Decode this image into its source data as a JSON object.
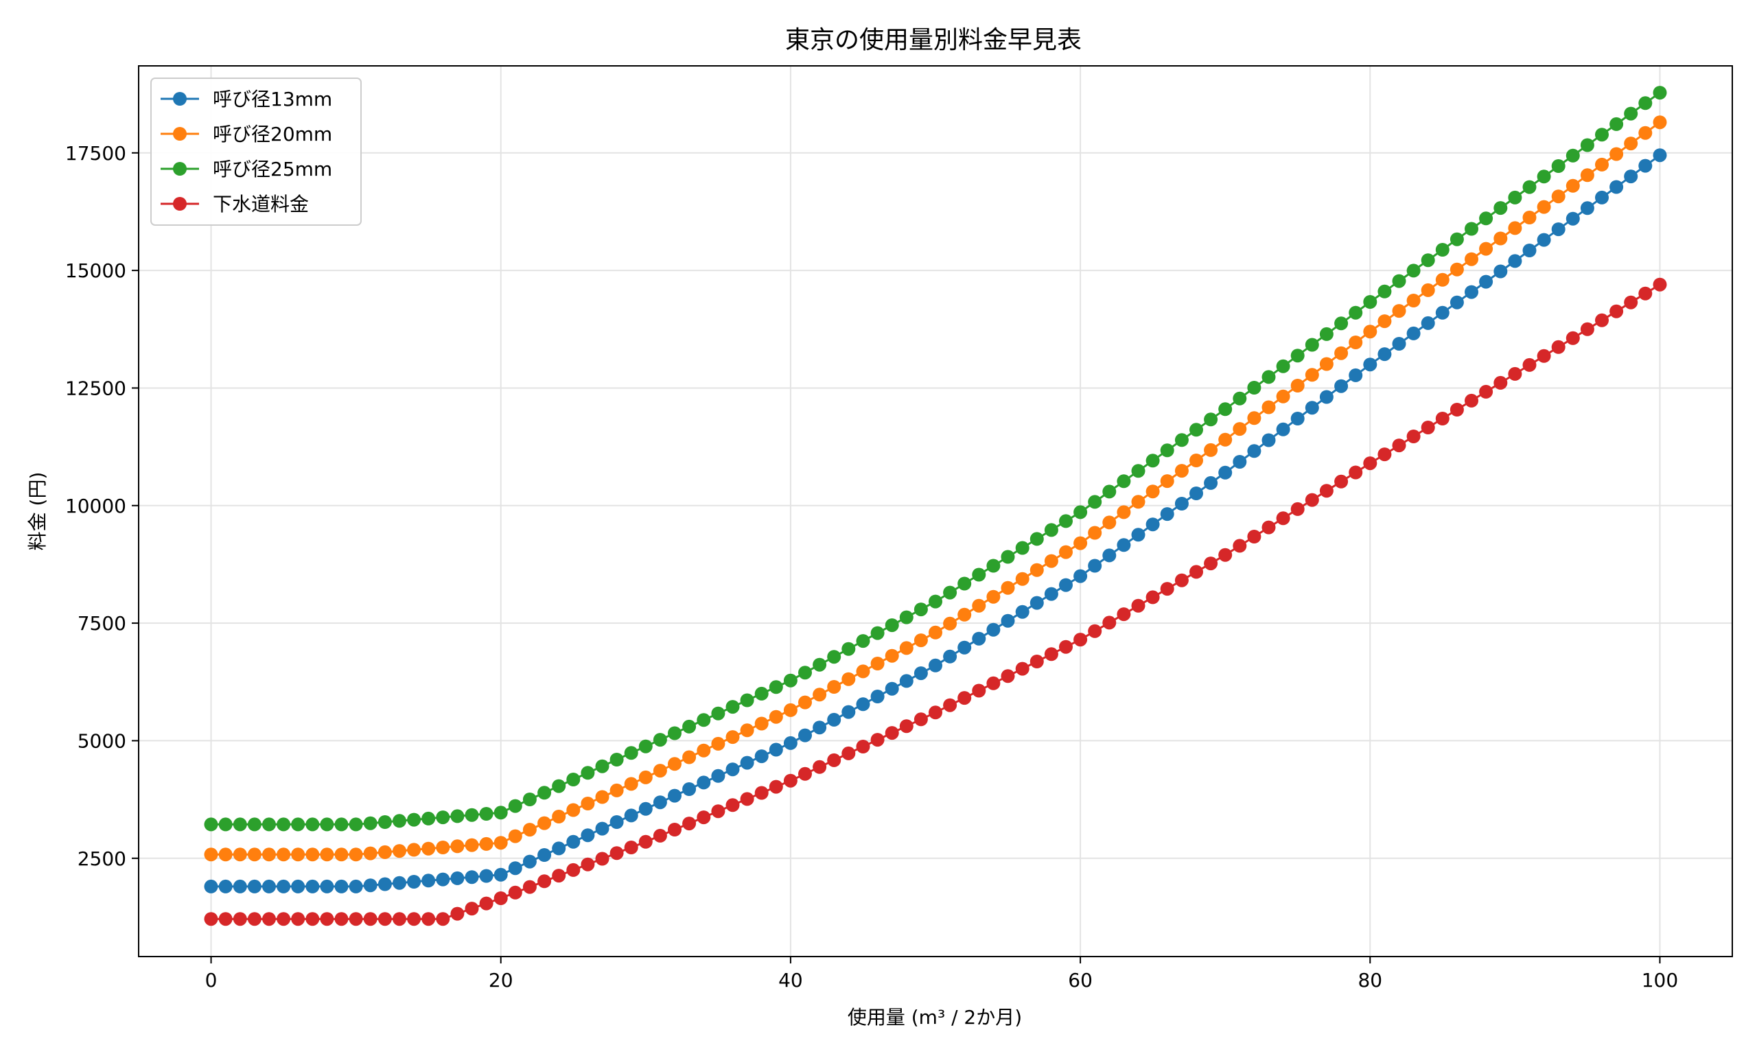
{
  "chart_data": {
    "type": "line",
    "title": "東京の使用量別料金早見表",
    "xlabel": "使用量 (m³ / 2か月)",
    "ylabel": "料金 (円)",
    "xlim": [
      -5,
      105
    ],
    "ylim": [
      410,
      19350
    ],
    "xticks": [
      0,
      20,
      40,
      60,
      80,
      100
    ],
    "yticks": [
      2500,
      5000,
      7500,
      10000,
      12500,
      15000,
      17500
    ],
    "grid": true,
    "legend": "top-left",
    "marker": "circle",
    "series": [
      {
        "name": "呼び径13mm",
        "color": "#1f77b4",
        "points": [
          [
            0,
            1900
          ],
          [
            10,
            1900
          ],
          [
            18,
            2100
          ],
          [
            20,
            2150
          ],
          [
            30,
            3550
          ],
          [
            40,
            4950
          ],
          [
            50,
            6600
          ],
          [
            60,
            8500
          ],
          [
            70,
            10700
          ],
          [
            80,
            13000
          ],
          [
            90,
            15200
          ],
          [
            100,
            17450
          ]
        ]
      },
      {
        "name": "呼び径20mm",
        "color": "#ff7f0e",
        "points": [
          [
            0,
            2580
          ],
          [
            10,
            2580
          ],
          [
            18,
            2780
          ],
          [
            20,
            2830
          ],
          [
            30,
            4220
          ],
          [
            40,
            5650
          ],
          [
            50,
            7300
          ],
          [
            60,
            9200
          ],
          [
            70,
            11400
          ],
          [
            80,
            13700
          ],
          [
            90,
            15900
          ],
          [
            100,
            18150
          ]
        ]
      },
      {
        "name": "呼び径25mm",
        "color": "#2ca02c",
        "points": [
          [
            0,
            3220
          ],
          [
            10,
            3220
          ],
          [
            18,
            3420
          ],
          [
            20,
            3470
          ],
          [
            30,
            4880
          ],
          [
            40,
            6280
          ],
          [
            50,
            7960
          ],
          [
            60,
            9860
          ],
          [
            70,
            12050
          ],
          [
            80,
            14330
          ],
          [
            90,
            16550
          ],
          [
            100,
            18780
          ]
        ]
      },
      {
        "name": "下水道料金",
        "color": "#d62728",
        "points": [
          [
            0,
            1210
          ],
          [
            16,
            1210
          ],
          [
            20,
            1650
          ],
          [
            30,
            2850
          ],
          [
            40,
            4150
          ],
          [
            50,
            5600
          ],
          [
            60,
            7150
          ],
          [
            70,
            8950
          ],
          [
            80,
            10900
          ],
          [
            90,
            12800
          ],
          [
            100,
            14700
          ]
        ]
      }
    ]
  }
}
